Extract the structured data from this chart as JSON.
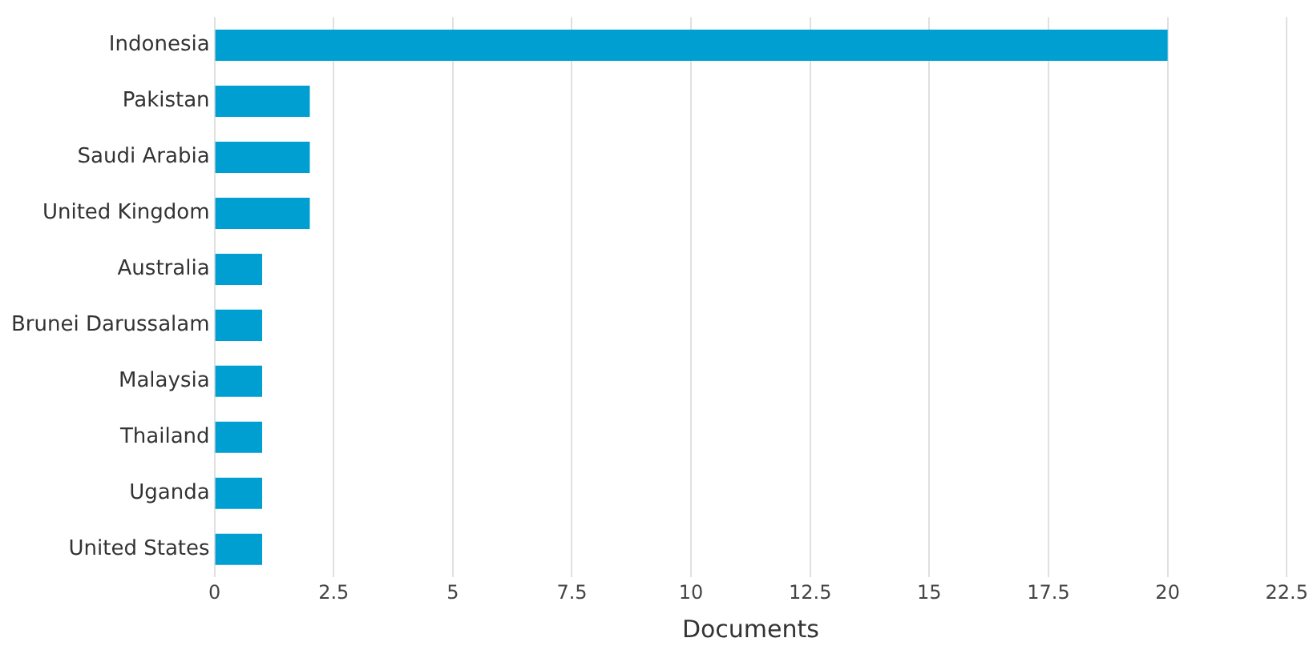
{
  "chart_data": {
    "type": "bar",
    "orientation": "horizontal",
    "xlabel": "Documents",
    "categories": [
      "Indonesia",
      "Pakistan",
      "Saudi Arabia",
      "United Kingdom",
      "Australia",
      "Brunei Darussalam",
      "Malaysia",
      "Thailand",
      "Uganda",
      "United States"
    ],
    "values": [
      20,
      2,
      2,
      2,
      1,
      1,
      1,
      1,
      1,
      1
    ],
    "color": "#009fd1",
    "xlim": [
      0,
      22.5
    ],
    "xticks": [
      0,
      2.5,
      5,
      7.5,
      10,
      12.5,
      15,
      17.5,
      20,
      22.5
    ],
    "grid": "x",
    "legend": false
  }
}
